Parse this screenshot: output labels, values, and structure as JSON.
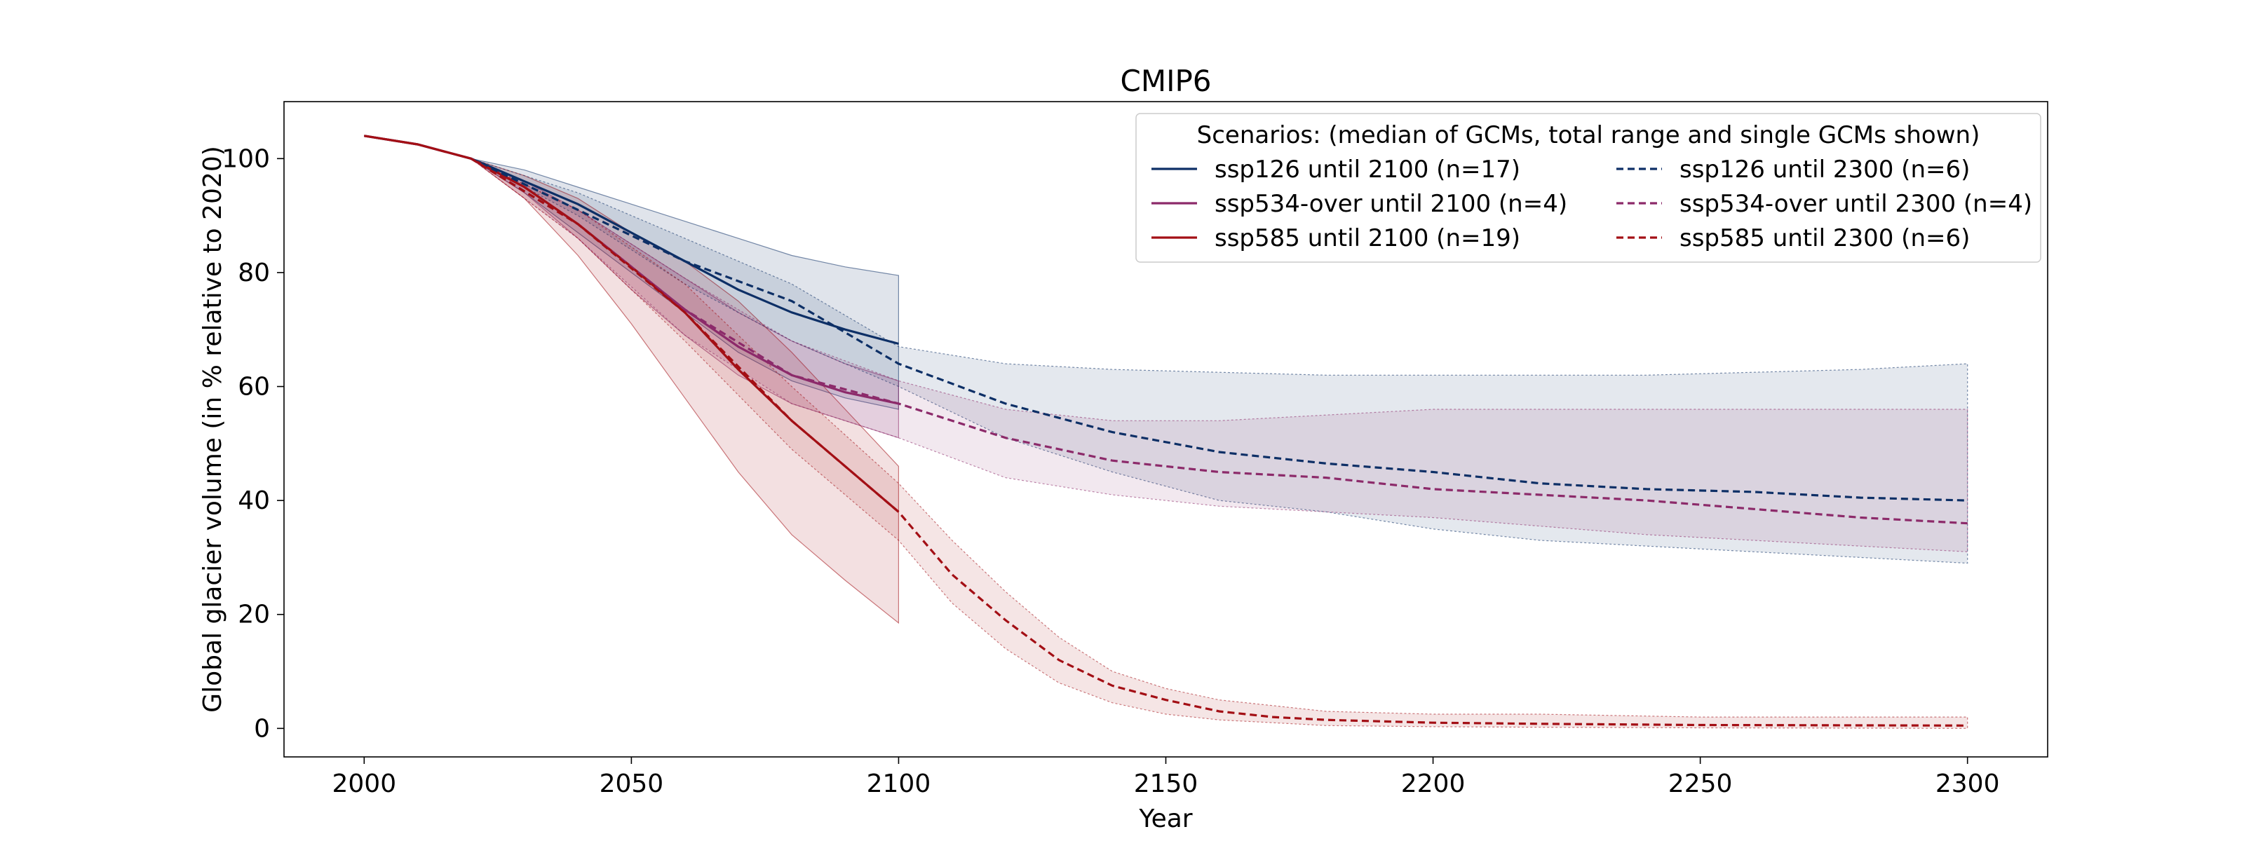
{
  "chart_data": {
    "type": "line",
    "title": "CMIP6",
    "xlabel": "Year",
    "ylabel": "Global glacier volume (in % relative to 2020)",
    "xlim": [
      1985,
      2315
    ],
    "ylim": [
      -5,
      110
    ],
    "xticks": [
      2000,
      2050,
      2100,
      2150,
      2200,
      2250,
      2300
    ],
    "yticks": [
      0,
      20,
      40,
      60,
      80,
      100
    ],
    "grid": false,
    "legend": {
      "title": "Scenarios: (median of GCMs, total range and single GCMs shown)",
      "placement": "top-right",
      "columns": 2
    },
    "colors": {
      "ssp126": "#0d2f66",
      "ssp534": "#8c2a6a",
      "ssp585": "#a30f15"
    },
    "series": [
      {
        "name": "ssp126 until 2100 (n=17)",
        "color": "#0d2f66",
        "style": "solid",
        "x": [
          2000,
          2010,
          2020,
          2030,
          2040,
          2050,
          2060,
          2070,
          2080,
          2090,
          2100
        ],
        "median": [
          104,
          102.5,
          100,
          96,
          92,
          87,
          82,
          77,
          73,
          70,
          67.5
        ],
        "lower": [
          104,
          102.5,
          100,
          94,
          87,
          80,
          73,
          66,
          61,
          58,
          56
        ],
        "upper": [
          104,
          102.5,
          100,
          98,
          95,
          92,
          89,
          86,
          83,
          81,
          79.5
        ]
      },
      {
        "name": "ssp534-over until 2100 (n=4)",
        "color": "#8c2a6a",
        "style": "solid",
        "x": [
          2000,
          2010,
          2020,
          2030,
          2040,
          2050,
          2060,
          2070,
          2080,
          2090,
          2100
        ],
        "median": [
          104,
          102.5,
          100,
          95,
          88.5,
          81,
          73.5,
          67,
          62,
          59,
          57
        ],
        "lower": [
          104,
          102.5,
          100,
          94,
          86,
          77,
          69,
          62,
          57,
          54,
          51
        ],
        "upper": [
          104,
          102.5,
          100,
          96,
          91,
          85,
          79,
          73,
          68,
          64,
          61
        ]
      },
      {
        "name": "ssp585 until 2100 (n=19)",
        "color": "#a30f15",
        "style": "solid",
        "x": [
          2000,
          2010,
          2020,
          2030,
          2040,
          2050,
          2060,
          2070,
          2080,
          2090,
          2100
        ],
        "median": [
          104,
          102.5,
          100,
          95,
          88.5,
          81,
          73,
          63,
          54,
          46,
          38
        ],
        "lower": [
          104,
          102.5,
          100,
          93,
          83,
          71,
          58,
          45,
          34,
          26,
          18.5
        ],
        "upper": [
          104,
          102.5,
          100,
          97,
          93,
          87,
          82,
          75,
          66,
          56,
          46
        ]
      },
      {
        "name": "ssp126 until 2300 (n=6)",
        "color": "#0d2f66",
        "style": "dashed",
        "x": [
          2020,
          2040,
          2060,
          2080,
          2100,
          2120,
          2140,
          2160,
          2180,
          2200,
          2220,
          2240,
          2260,
          2280,
          2300
        ],
        "median": [
          100,
          91,
          82,
          75,
          64,
          57,
          52,
          48.5,
          46.5,
          45,
          43,
          42,
          41.5,
          40.5,
          40
        ],
        "lower": [
          100,
          90,
          78,
          68,
          60,
          51,
          45,
          40,
          38,
          35,
          33,
          32,
          31,
          30,
          29
        ],
        "upper": [
          100,
          94,
          86,
          78,
          67,
          64,
          63,
          62.5,
          62,
          62,
          62,
          62,
          62.5,
          63,
          64
        ]
      },
      {
        "name": "ssp534-over until 2300 (n=4)",
        "color": "#8c2a6a",
        "style": "dashed",
        "x": [
          2020,
          2040,
          2060,
          2080,
          2100,
          2120,
          2140,
          2160,
          2180,
          2200,
          2220,
          2240,
          2260,
          2280,
          2300
        ],
        "median": [
          100,
          88.5,
          73.5,
          62,
          57,
          51,
          47,
          45,
          44,
          42,
          41,
          40,
          38.5,
          37,
          36
        ],
        "lower": [
          100,
          86,
          69,
          57,
          51,
          44,
          41,
          39,
          38,
          37,
          35.5,
          34,
          33,
          32,
          31
        ],
        "upper": [
          100,
          91,
          79,
          68,
          61,
          56,
          54,
          54,
          55,
          56,
          56,
          56,
          56,
          56,
          56
        ]
      },
      {
        "name": "ssp585 until 2300 (n=6)",
        "color": "#a30f15",
        "style": "dashed",
        "x": [
          2020,
          2040,
          2060,
          2080,
          2100,
          2110,
          2120,
          2130,
          2140,
          2150,
          2160,
          2170,
          2180,
          2200,
          2220,
          2250,
          2300
        ],
        "median": [
          100,
          88.5,
          73,
          54,
          38,
          27,
          19,
          12,
          7.5,
          5,
          3,
          2,
          1.5,
          1,
          0.8,
          0.6,
          0.5
        ],
        "lower": [
          100,
          86,
          68,
          49,
          33,
          22,
          14,
          8,
          4.5,
          2.5,
          1.5,
          1,
          0.5,
          0.3,
          0.2,
          0.1,
          0
        ],
        "upper": [
          100,
          91,
          78,
          60,
          43,
          33,
          24,
          16,
          10,
          7,
          5,
          4,
          3,
          2.5,
          2.5,
          2,
          2
        ]
      }
    ]
  }
}
